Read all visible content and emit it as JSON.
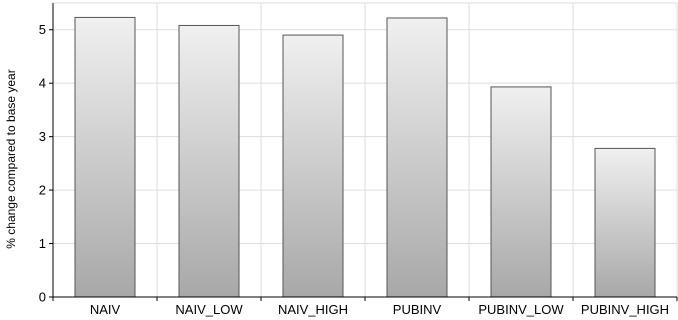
{
  "chart_data": {
    "type": "bar",
    "categories": [
      "NAIV",
      "NAIV_LOW",
      "NAIV_HIGH",
      "PUBINV",
      "PUBINV_LOW",
      "PUBINV_HIGH"
    ],
    "values": [
      5.23,
      5.08,
      4.9,
      5.22,
      3.93,
      2.78
    ],
    "xlabel": "",
    "ylabel": "% change compared to base year",
    "ylim": [
      0,
      5.5
    ],
    "yticks": [
      0,
      1,
      2,
      3,
      4,
      5
    ],
    "grid": true,
    "bar_colors": {
      "top": "#f0f0f0",
      "bottom": "#a8a8a8",
      "stroke": "#555555"
    }
  }
}
